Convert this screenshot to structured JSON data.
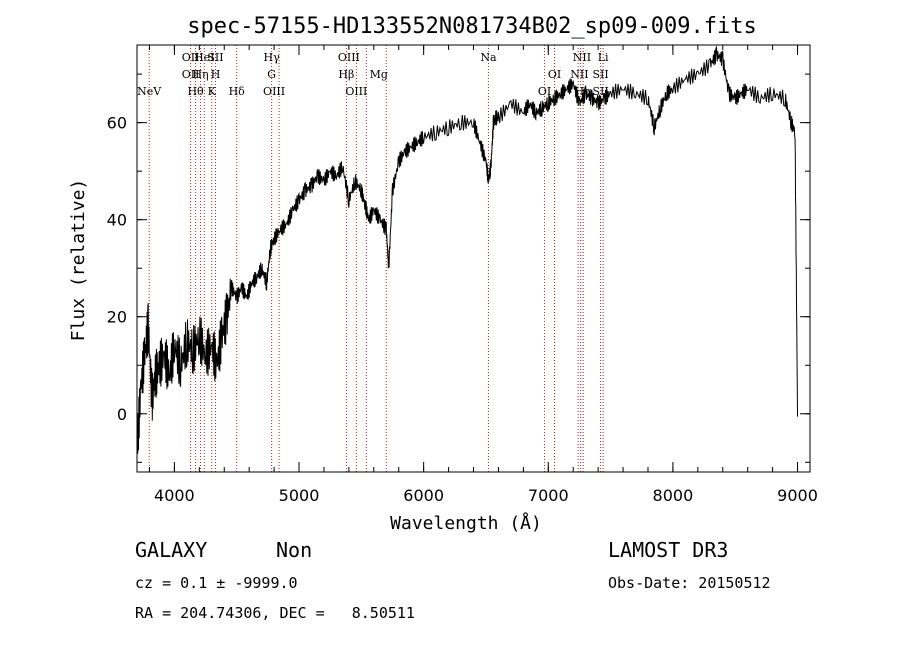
{
  "chart_data": {
    "type": "line",
    "title": "spec-57155-HD133552N081734B02_sp09-009.fits",
    "xlabel": "Wavelength (Å)",
    "ylabel": "Flux (relative)",
    "xlim": [
      3700,
      9100
    ],
    "ylim": [
      -12,
      76
    ],
    "xticks": [
      4000,
      5000,
      6000,
      7000,
      8000,
      9000
    ],
    "yticks": [
      0,
      20,
      40,
      60
    ],
    "grid": false,
    "line_color": "#000000",
    "marker_color": "#b22222",
    "series": [
      {
        "x": [
          3700,
          3730,
          3760,
          3790,
          3820,
          3850,
          3880,
          3920,
          3960,
          4000,
          4050,
          4100,
          4150,
          4200,
          4250,
          4300,
          4340,
          4380,
          4420,
          4460,
          4500,
          4540,
          4580,
          4620,
          4660,
          4700,
          4740,
          4770,
          4800,
          4850,
          4900,
          4950,
          5000,
          5050,
          5100,
          5150,
          5200,
          5250,
          5300,
          5350,
          5400,
          5450,
          5500,
          5530,
          5560,
          5600,
          5650,
          5700,
          5720,
          5750,
          5800,
          5850,
          5900,
          5950,
          6000,
          6100,
          6200,
          6300,
          6400,
          6450,
          6500,
          6520,
          6540,
          6560,
          6580,
          6600,
          6700,
          6800,
          6850,
          6900,
          6950,
          7000,
          7050,
          7100,
          7150,
          7200,
          7250,
          7300,
          7350,
          7400,
          7450,
          7500,
          7600,
          7700,
          7800,
          7850,
          7900,
          7950,
          8000,
          8100,
          8200,
          8300,
          8350,
          8400,
          8450,
          8500,
          8550,
          8600,
          8700,
          8800,
          8900,
          8950,
          8980,
          9000
        ],
        "y": [
          -8,
          5,
          12,
          18,
          3,
          8,
          10,
          12,
          8,
          14,
          10,
          15,
          13,
          16,
          12,
          14,
          10,
          16,
          20,
          26,
          24,
          26,
          24,
          27,
          28,
          30,
          27,
          34,
          36,
          38,
          39,
          42,
          44,
          46,
          47,
          49,
          48,
          50,
          49,
          51,
          44,
          48,
          46,
          43,
          40,
          42,
          40,
          38,
          30,
          46,
          52,
          54,
          55,
          56,
          57,
          58,
          59,
          60,
          60,
          56,
          52,
          48,
          51,
          60,
          61,
          61,
          64,
          62,
          64,
          62,
          63,
          64,
          65,
          66,
          67,
          68,
          64,
          66,
          65,
          64,
          65,
          66,
          67,
          66,
          65,
          59,
          63,
          66,
          67,
          69,
          70,
          72,
          74,
          73,
          66,
          65,
          66,
          67,
          65,
          66,
          65,
          60,
          58,
          0
        ]
      }
    ],
    "lines": [
      {
        "label": "NeV",
        "x": 3798,
        "row": 3
      },
      {
        "label": "OII",
        "x": 4130,
        "row": 0
      },
      {
        "label": "OII",
        "x": 4130,
        "row": 1
      },
      {
        "label": "HeI",
        "x": 4240,
        "row": 0
      },
      {
        "label": "SII",
        "x": 4330,
        "row": 0
      },
      {
        "label": "Hη",
        "x": 4210,
        "row": 1
      },
      {
        "label": "H",
        "x": 4330,
        "row": 1
      },
      {
        "label": "Hθ",
        "x": 4170,
        "row": 2
      },
      {
        "label": "K",
        "x": 4300,
        "row": 2
      },
      {
        "label": "Hδ",
        "x": 4500,
        "row": 2
      },
      {
        "label": "Hγ",
        "x": 4780,
        "row": 0
      },
      {
        "label": "G",
        "x": 4780,
        "row": 1
      },
      {
        "label": "OIII",
        "x": 4800,
        "row": 2
      },
      {
        "label": "OIII",
        "x": 5400,
        "row": 0
      },
      {
        "label": "Hβ",
        "x": 5380,
        "row": 1
      },
      {
        "label": "OIII",
        "x": 5460,
        "row": 2
      },
      {
        "label": "Mg",
        "x": 5640,
        "row": 1
      },
      {
        "label": "Na",
        "x": 6520,
        "row": 0
      },
      {
        "label": "OI",
        "x": 7050,
        "row": 1
      },
      {
        "label": "OI",
        "x": 6970,
        "row": 2
      },
      {
        "label": "NII",
        "x": 7270,
        "row": 0
      },
      {
        "label": "Li",
        "x": 7440,
        "row": 0
      },
      {
        "label": "NII",
        "x": 7250,
        "row": 1
      },
      {
        "label": "SII",
        "x": 7420,
        "row": 1
      },
      {
        "label": "Hα",
        "x": 7280,
        "row": 2
      },
      {
        "label": "SII",
        "x": 7420,
        "row": 2
      }
    ],
    "line_markers": [
      3798,
      4130,
      4170,
      4210,
      4240,
      4300,
      4330,
      4500,
      4780,
      4840,
      5380,
      5460,
      5540,
      5700,
      6520,
      6970,
      7050,
      7240,
      7260,
      7280,
      7420,
      7440
    ]
  },
  "info": {
    "class": "GALAXY",
    "subclass": "Non",
    "survey": "LAMOST DR3",
    "cz": "cz = 0.1 ± -9999.0",
    "obs_date": "Obs-Date: 20150512",
    "coords": "RA = 204.74306, DEC =   8.50511"
  }
}
